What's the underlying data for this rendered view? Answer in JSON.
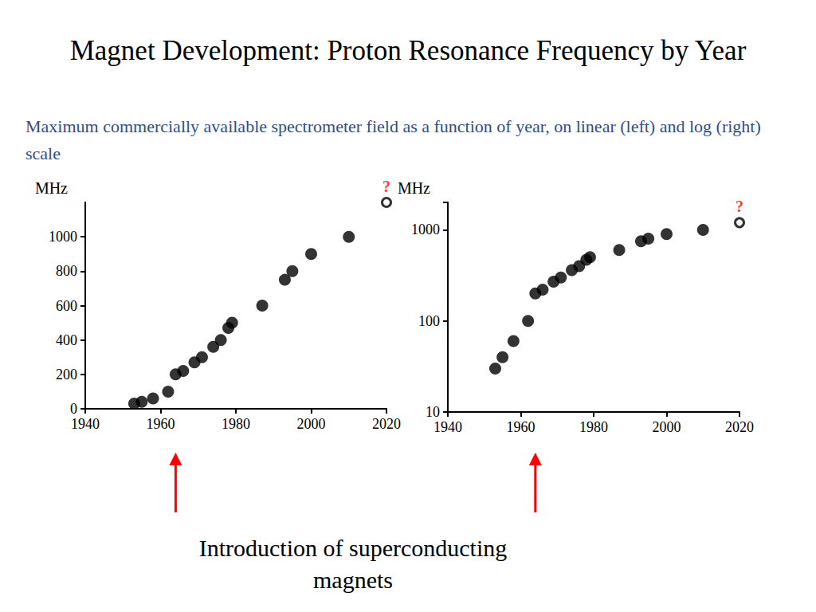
{
  "title": "Magnet Development: Proton Resonance Frequency by Year",
  "subtitle": "Maximum commercially available spectrometer field as a function of year, on linear (left) and log (right) scale",
  "annotation": {
    "text": "Introduction of superconducting magnets",
    "x": 1964,
    "color": "#ff0000"
  },
  "chart_data": [
    {
      "type": "scatter",
      "y_label": "MHz",
      "series": [
        {
          "color": "#000000",
          "marker": "circle",
          "x": [
            1953,
            1955,
            1958,
            1962,
            1964,
            1966,
            1969,
            1971,
            1974,
            1976,
            1978,
            1979,
            1987,
            1993,
            1995,
            2000,
            2010
          ],
          "values": [
            30,
            40,
            60,
            100,
            200,
            220,
            270,
            300,
            360,
            400,
            470,
            500,
            600,
            750,
            800,
            900,
            1000
          ]
        },
        {
          "color": "#000000",
          "marker": "open_circle",
          "x": [
            2020
          ],
          "values": [
            1200
          ]
        }
      ],
      "annotations": [
        {
          "text": "?",
          "x": 2020,
          "y": 1200,
          "color": "#ff0000"
        }
      ],
      "xlim": [
        1940,
        2020
      ],
      "xticks": [
        1940,
        1960,
        1980,
        2000,
        2020
      ],
      "ylim": [
        0,
        1200
      ],
      "yticks": [
        0,
        200,
        400,
        600,
        800,
        1000
      ],
      "grid": false
    },
    {
      "type": "scatter",
      "y_label": "MHz",
      "log": "y",
      "series": [
        {
          "color": "#000000",
          "marker": "circle",
          "x": [
            1953,
            1955,
            1958,
            1962,
            1964,
            1966,
            1969,
            1971,
            1974,
            1976,
            1978,
            1979,
            1987,
            1993,
            1995,
            2000,
            2010
          ],
          "values": [
            30,
            40,
            60,
            100,
            200,
            220,
            270,
            300,
            360,
            400,
            470,
            500,
            600,
            750,
            800,
            900,
            1000
          ]
        },
        {
          "color": "#000000",
          "marker": "open_circle",
          "x": [
            2020
          ],
          "values": [
            1200
          ]
        }
      ],
      "annotations": [
        {
          "text": "?",
          "x": 2020,
          "y": 1200,
          "color": "#ff0000"
        }
      ],
      "xlim": [
        1940,
        2020
      ],
      "xticks": [
        1940,
        1960,
        1980,
        2000,
        2020
      ],
      "ylim": [
        10,
        2000
      ],
      "yticks": [
        10,
        100,
        1000
      ],
      "grid": false
    }
  ]
}
